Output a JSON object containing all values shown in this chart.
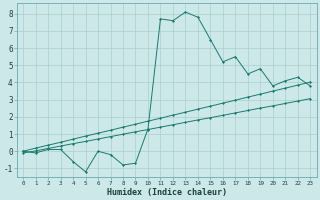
{
  "x_values": [
    0,
    1,
    2,
    3,
    4,
    5,
    6,
    7,
    8,
    9,
    10,
    11,
    12,
    13,
    14,
    15,
    16,
    17,
    18,
    19,
    20,
    21,
    22,
    23
  ],
  "line1_y": [
    0,
    -0.1,
    0.1,
    0.1,
    -0.6,
    -1.2,
    0.0,
    -0.2,
    -0.8,
    -0.7,
    1.3,
    7.7,
    7.6,
    8.1,
    7.8,
    6.5,
    5.2,
    5.5,
    4.5,
    4.8,
    3.8,
    4.1,
    4.3,
    3.8
  ],
  "line2_y": [
    0,
    0.18,
    0.35,
    0.52,
    0.7,
    0.88,
    1.05,
    1.22,
    1.4,
    1.57,
    1.75,
    1.92,
    2.1,
    2.27,
    2.45,
    2.62,
    2.8,
    2.97,
    3.15,
    3.32,
    3.5,
    3.67,
    3.85,
    4.02
  ],
  "line3_y": [
    -0.1,
    0.02,
    0.16,
    0.3,
    0.44,
    0.57,
    0.71,
    0.85,
    0.99,
    1.13,
    1.26,
    1.4,
    1.54,
    1.68,
    1.82,
    1.95,
    2.09,
    2.23,
    2.37,
    2.51,
    2.64,
    2.78,
    2.92,
    3.06
  ],
  "line_color": "#1a7a6e",
  "bg_color": "#cde8e8",
  "grid_color": "#aacfcf",
  "xlabel": "Humidex (Indice chaleur)",
  "ylabel_ticks": [
    -1,
    0,
    1,
    2,
    3,
    4,
    5,
    6,
    7,
    8
  ],
  "xlim": [
    -0.5,
    23.5
  ],
  "ylim": [
    -1.5,
    8.6
  ]
}
